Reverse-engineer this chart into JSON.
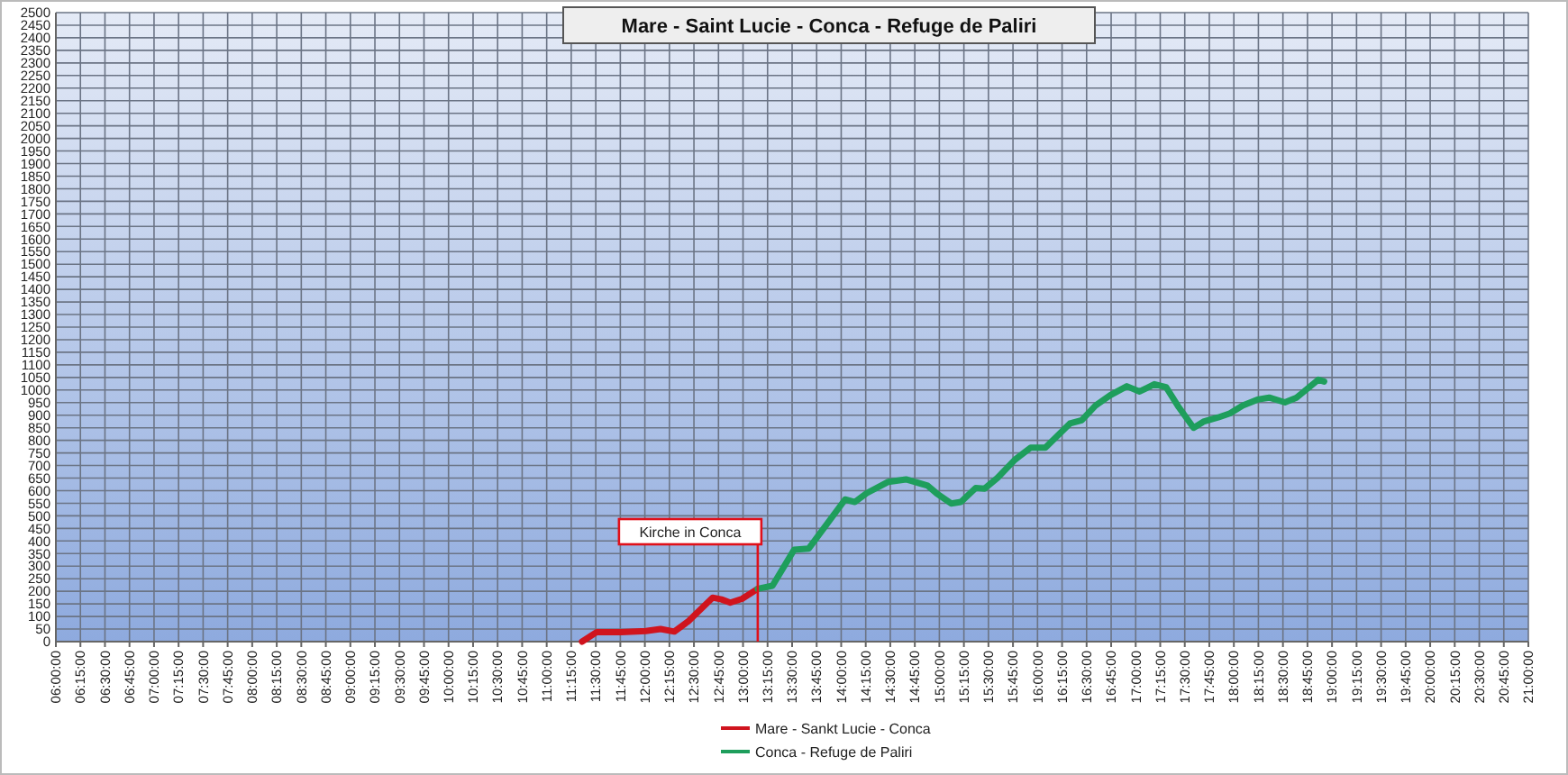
{
  "chart_data": {
    "type": "line",
    "title": "Mare - Saint Lucie - Conca - Refuge de Paliri",
    "series": [
      {
        "name": "Mare - Sankt Lucie - Conca",
        "color": "#d0141e",
        "x": [
          11.36,
          11.51,
          11.76,
          12.01,
          12.16,
          12.3,
          12.44,
          12.69,
          12.78,
          12.87,
          12.99,
          13.15
        ],
        "values": [
          0,
          38,
          38,
          42,
          50,
          40,
          80,
          175,
          168,
          155,
          170,
          210
        ]
      },
      {
        "name": "Conca - Refuge de Paliri",
        "color": "#1e9e5c",
        "x": [
          13.15,
          13.3,
          13.52,
          13.67,
          14.04,
          14.14,
          14.26,
          14.48,
          14.66,
          14.88,
          14.97,
          15.12,
          15.22,
          15.37,
          15.46,
          15.59,
          15.77,
          15.93,
          16.08,
          16.33,
          16.45,
          16.59,
          16.74,
          16.91,
          17.04,
          17.19,
          17.31,
          17.44,
          17.59,
          17.69,
          17.84,
          17.96,
          18.09,
          18.24,
          18.36,
          18.52,
          18.64,
          18.86,
          18.92
        ],
        "values": [
          210,
          222,
          365,
          370,
          565,
          555,
          590,
          635,
          645,
          620,
          590,
          549,
          555,
          611,
          608,
          650,
          723,
          771,
          771,
          867,
          880,
          938,
          979,
          1015,
          994,
          1023,
          1011,
          931,
          850,
          874,
          891,
          907,
          938,
          962,
          970,
          951,
          970,
          1041,
          1034
        ]
      }
    ],
    "ref_lines": [
      {
        "axis": "x",
        "value": 13.15,
        "label": "Kirche in Conca",
        "color": "#e0101a"
      }
    ],
    "xlim": [
      6,
      21
    ],
    "xticks": [
      {
        "value": 6,
        "label": "06:00:00"
      },
      {
        "value": 6.25,
        "label": "06:15:00"
      },
      {
        "value": 6.5,
        "label": "06:30:00"
      },
      {
        "value": 6.75,
        "label": "06:45:00"
      },
      {
        "value": 7,
        "label": "07:00:00"
      },
      {
        "value": 7.25,
        "label": "07:15:00"
      },
      {
        "value": 7.5,
        "label": "07:30:00"
      },
      {
        "value": 7.75,
        "label": "07:45:00"
      },
      {
        "value": 8,
        "label": "08:00:00"
      },
      {
        "value": 8.25,
        "label": "08:15:00"
      },
      {
        "value": 8.5,
        "label": "08:30:00"
      },
      {
        "value": 8.75,
        "label": "08:45:00"
      },
      {
        "value": 9,
        "label": "09:00:00"
      },
      {
        "value": 9.25,
        "label": "09:15:00"
      },
      {
        "value": 9.5,
        "label": "09:30:00"
      },
      {
        "value": 9.75,
        "label": "09:45:00"
      },
      {
        "value": 10,
        "label": "10:00:00"
      },
      {
        "value": 10.25,
        "label": "10:15:00"
      },
      {
        "value": 10.5,
        "label": "10:30:00"
      },
      {
        "value": 10.75,
        "label": "10:45:00"
      },
      {
        "value": 11,
        "label": "11:00:00"
      },
      {
        "value": 11.25,
        "label": "11:15:00"
      },
      {
        "value": 11.5,
        "label": "11:30:00"
      },
      {
        "value": 11.75,
        "label": "11:45:00"
      },
      {
        "value": 12,
        "label": "12:00:00"
      },
      {
        "value": 12.25,
        "label": "12:15:00"
      },
      {
        "value": 12.5,
        "label": "12:30:00"
      },
      {
        "value": 12.75,
        "label": "12:45:00"
      },
      {
        "value": 13,
        "label": "13:00:00"
      },
      {
        "value": 13.25,
        "label": "13:15:00"
      },
      {
        "value": 13.5,
        "label": "13:30:00"
      },
      {
        "value": 13.75,
        "label": "13:45:00"
      },
      {
        "value": 14,
        "label": "14:00:00"
      },
      {
        "value": 14.25,
        "label": "14:15:00"
      },
      {
        "value": 14.5,
        "label": "14:30:00"
      },
      {
        "value": 14.75,
        "label": "14:45:00"
      },
      {
        "value": 15,
        "label": "15:00:00"
      },
      {
        "value": 15.25,
        "label": "15:15:00"
      },
      {
        "value": 15.5,
        "label": "15:30:00"
      },
      {
        "value": 15.75,
        "label": "15:45:00"
      },
      {
        "value": 16,
        "label": "16:00:00"
      },
      {
        "value": 16.25,
        "label": "16:15:00"
      },
      {
        "value": 16.5,
        "label": "16:30:00"
      },
      {
        "value": 16.75,
        "label": "16:45:00"
      },
      {
        "value": 17,
        "label": "17:00:00"
      },
      {
        "value": 17.25,
        "label": "17:15:00"
      },
      {
        "value": 17.5,
        "label": "17:30:00"
      },
      {
        "value": 17.75,
        "label": "17:45:00"
      },
      {
        "value": 18,
        "label": "18:00:00"
      },
      {
        "value": 18.25,
        "label": "18:15:00"
      },
      {
        "value": 18.5,
        "label": "18:30:00"
      },
      {
        "value": 18.75,
        "label": "18:45:00"
      },
      {
        "value": 19,
        "label": "19:00:00"
      },
      {
        "value": 19.25,
        "label": "19:15:00"
      },
      {
        "value": 19.5,
        "label": "19:30:00"
      },
      {
        "value": 19.75,
        "label": "19:45:00"
      },
      {
        "value": 20,
        "label": "20:00:00"
      },
      {
        "value": 20.25,
        "label": "20:15:00"
      },
      {
        "value": 20.5,
        "label": "20:30:00"
      },
      {
        "value": 20.75,
        "label": "20:45:00"
      },
      {
        "value": 21,
        "label": "21:00:00"
      }
    ],
    "ylim": [
      0,
      2500
    ],
    "yticks": [
      0,
      50,
      100,
      150,
      200,
      250,
      300,
      350,
      400,
      450,
      500,
      550,
      600,
      650,
      700,
      750,
      800,
      850,
      900,
      950,
      1000,
      1050,
      1100,
      1150,
      1200,
      1250,
      1300,
      1350,
      1400,
      1450,
      1500,
      1550,
      1600,
      1650,
      1700,
      1750,
      1800,
      1850,
      1900,
      1950,
      2000,
      2050,
      2100,
      2150,
      2200,
      2250,
      2300,
      2350,
      2400,
      2450,
      2500
    ],
    "grid": true,
    "legend": "bottom",
    "marker": "none",
    "line_style": "solid"
  }
}
